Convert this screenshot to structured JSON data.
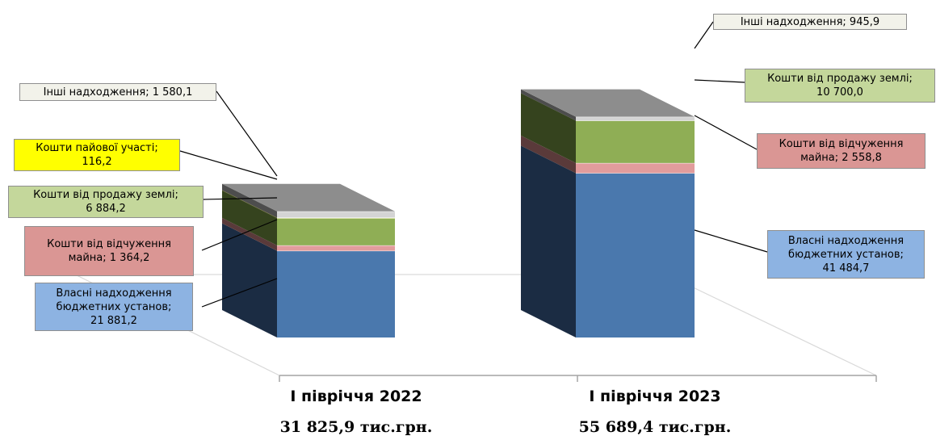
{
  "chart_data": {
    "type": "bar",
    "stacked": true,
    "three_d": true,
    "categories": [
      "І півріччя 2022",
      "І півріччя 2023"
    ],
    "totals": [
      "31 825,9 тис.грн.",
      "55 689,4 тис.грн."
    ],
    "series": [
      {
        "name": "Власні надходження бюджетних установ",
        "values": [
          21881.2,
          41484.7
        ],
        "labels": [
          [
            "Власні надходження",
            "бюджетних установ;",
            "21 881,2"
          ],
          [
            "Власні надходження",
            "бюджетних установ;",
            "41 484,7"
          ]
        ],
        "color": "#4a78ad",
        "side": "#1b2c43",
        "label_bg": "#8db3e2"
      },
      {
        "name": "Кошти від відчуження майна",
        "values": [
          1364.2,
          2558.8
        ],
        "labels": [
          [
            "Кошти від відчуження",
            "майна; 1 364,2"
          ],
          [
            "Кошти від відчуження",
            "майна; 2 558,8"
          ]
        ],
        "color": "#e29c9c",
        "side": "#5a3a3a",
        "label_bg": "#da9694"
      },
      {
        "name": "Кошти від продажу землі",
        "values": [
          6884.2,
          10700.0
        ],
        "labels": [
          [
            "Кошти від продажу землі;",
            "6 884,2"
          ],
          [
            "Кошти від продажу землі;",
            "10 700,0"
          ]
        ],
        "color": "#8fae55",
        "side": "#35431e",
        "label_bg": "#c4d79b"
      },
      {
        "name": "Кошти пайової участі",
        "values": [
          116.2,
          0
        ],
        "labels": [
          [
            "Кошти пайової участі;",
            "116,2"
          ],
          null
        ],
        "color": "#ffff3b",
        "side": "#585815",
        "label_bg": "#ffff00"
      },
      {
        "name": "Інші надходження",
        "values": [
          1580.1,
          945.9
        ],
        "labels": [
          [
            "Інші надходження; 1 580,1"
          ],
          [
            "Інші надходження;  945,9"
          ]
        ],
        "color": "#d4d4d4",
        "side": "#4d4d4d",
        "label_bg": "#f2f2ea"
      }
    ],
    "legend": "none",
    "grid": false
  }
}
